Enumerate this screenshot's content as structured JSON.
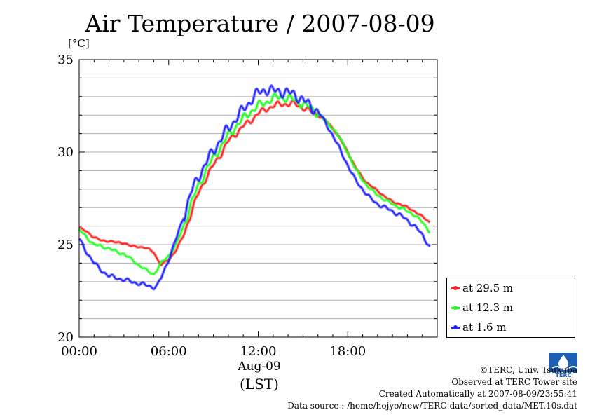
{
  "page": {
    "title": "Air Temperature / 2007-08-09",
    "xsub1": "Aug-09",
    "xsub2": "(LST)",
    "credits": [
      "©TERC, Univ. Tsukuba",
      "Observed at TERC Tower site",
      "Created Automatically at 2007-08-09/23:55:41",
      "Data source : /home/hojyo/new/TERC-data/sorted_data/MET.10s.dat"
    ],
    "logo_text": "TERC"
  },
  "chart_data": {
    "type": "line",
    "title": "Air Temperature / 2007-08-09",
    "ylabel": "[°C]",
    "xlabel": "Aug-09 (LST)",
    "xlim": [
      0,
      24
    ],
    "ylim": [
      20,
      35
    ],
    "xticks": [
      0,
      6,
      12,
      18
    ],
    "xtick_labels": [
      "00:00",
      "06:00",
      "12:00",
      "18:00"
    ],
    "yticks": [
      20,
      25,
      30,
      35
    ],
    "ytick_labels": [
      "20",
      "25",
      "30",
      "35"
    ],
    "grid": true,
    "legend_position": "right-bottom",
    "series": [
      {
        "name": "at 29.5 m",
        "color": "#ff2020",
        "x": [
          0,
          0.5,
          1,
          1.5,
          2,
          2.5,
          3,
          3.5,
          4,
          4.5,
          5,
          5.25,
          5.5,
          6,
          6.5,
          7,
          7.5,
          8,
          8.5,
          9,
          9.5,
          10,
          10.5,
          11,
          11.5,
          12,
          12.5,
          13,
          13.5,
          14,
          14.5,
          15,
          15.5,
          16,
          16.5,
          17,
          17.5,
          18,
          18.5,
          19,
          19.5,
          20,
          20.5,
          21,
          21.5,
          22,
          22.5,
          23,
          23.5
        ],
        "y": [
          25.9,
          25.7,
          25.4,
          25.2,
          25.2,
          25.1,
          25.1,
          24.9,
          24.9,
          24.8,
          24.6,
          24.2,
          23.9,
          24.2,
          24.7,
          25.5,
          26.7,
          27.8,
          28.6,
          29.3,
          29.9,
          30.6,
          31.0,
          31.4,
          31.7,
          32.1,
          32.3,
          32.5,
          32.6,
          32.6,
          32.6,
          32.4,
          32.2,
          32.0,
          31.7,
          31.3,
          30.7,
          30.0,
          29.2,
          28.6,
          28.2,
          27.9,
          27.6,
          27.3,
          27.2,
          27.0,
          26.8,
          26.5,
          26.2
        ]
      },
      {
        "name": "at 12.3 m",
        "color": "#20ff20",
        "x": [
          0,
          0.5,
          1,
          1.5,
          2,
          2.5,
          3,
          3.5,
          4,
          4.5,
          5,
          5.25,
          5.5,
          6,
          6.5,
          7,
          7.5,
          8,
          8.5,
          9,
          9.5,
          10,
          10.5,
          11,
          11.5,
          12,
          12.5,
          13,
          13.5,
          14,
          14.5,
          15,
          15.5,
          16,
          16.5,
          17,
          17.5,
          18,
          18.5,
          19,
          19.5,
          20,
          20.5,
          21,
          21.5,
          22,
          22.5,
          23,
          23.5
        ],
        "y": [
          25.8,
          25.4,
          25.0,
          24.9,
          24.8,
          24.6,
          24.5,
          24.2,
          23.9,
          23.6,
          23.4,
          23.7,
          24.0,
          24.4,
          25.0,
          26.0,
          27.2,
          28.2,
          29.0,
          29.7,
          30.3,
          30.9,
          31.4,
          31.8,
          32.2,
          32.5,
          32.7,
          32.9,
          33.0,
          32.9,
          32.8,
          32.6,
          32.4,
          32.1,
          31.7,
          31.3,
          30.7,
          30.0,
          29.1,
          28.5,
          28.0,
          27.7,
          27.4,
          27.2,
          27.0,
          26.8,
          26.6,
          26.2,
          25.7
        ]
      },
      {
        "name": "at 1.6 m",
        "color": "#2020ff",
        "x": [
          0,
          0.5,
          1,
          1.5,
          2,
          2.5,
          3,
          3.5,
          4,
          4.5,
          5,
          5.25,
          5.5,
          6,
          6.5,
          7,
          7.5,
          8,
          8.5,
          9,
          9.5,
          10,
          10.5,
          11,
          11.5,
          12,
          12.5,
          13,
          13.5,
          14,
          14.5,
          15,
          15.5,
          16,
          16.5,
          17,
          17.5,
          18,
          18.5,
          19,
          19.5,
          20,
          20.5,
          21,
          21.5,
          22,
          22.5,
          23,
          23.5
        ],
        "y": [
          25.3,
          24.6,
          24.0,
          23.6,
          23.3,
          23.2,
          23.1,
          23.0,
          22.9,
          22.8,
          22.7,
          22.8,
          23.2,
          24.2,
          25.3,
          26.5,
          27.8,
          28.7,
          29.4,
          30.1,
          30.7,
          31.3,
          31.8,
          32.3,
          32.8,
          33.2,
          33.4,
          33.3,
          33.3,
          33.2,
          33.1,
          32.8,
          32.5,
          32.2,
          31.6,
          30.9,
          30.1,
          29.3,
          28.5,
          28.0,
          27.5,
          27.2,
          27.0,
          26.8,
          26.6,
          26.3,
          26.0,
          25.5,
          24.9
        ]
      }
    ]
  }
}
